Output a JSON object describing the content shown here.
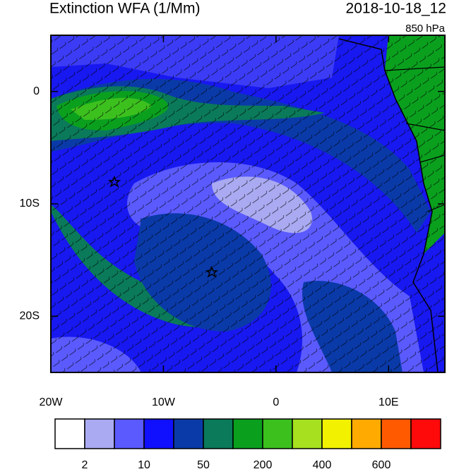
{
  "map": {
    "title": "Extinction WFA (1/Mm)",
    "valid_time": "2018-10-18_12",
    "level": "850 hPa",
    "xlim": [
      -20,
      15
    ],
    "ylim": [
      -25,
      5
    ],
    "xticks": [
      {
        "value": -20,
        "label": "20W"
      },
      {
        "value": -10,
        "label": "10W"
      },
      0,
      {
        "value": 10,
        "label": "10E"
      }
    ],
    "yticks": [
      0,
      {
        "value": -10,
        "label": "10S"
      },
      {
        "value": -20,
        "label": "20S"
      }
    ],
    "colorbar": {
      "colors": [
        "#ffffff",
        "#aaaaf2",
        "#5a5aff",
        "#1010ff",
        "#0a3aa8",
        "#0a7a5a",
        "#0aa01e",
        "#3cc01e",
        "#a6e01e",
        "#f2f200",
        "#ffaa00",
        "#ff5a00",
        "#ff0a0a"
      ],
      "labels": [
        2,
        null,
        10,
        null,
        50,
        null,
        200,
        null,
        400,
        null,
        600,
        null
      ]
    }
  }
}
